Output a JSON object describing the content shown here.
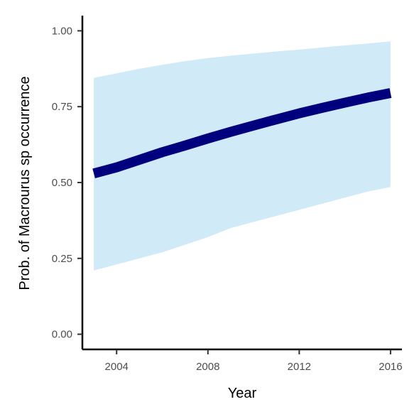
{
  "chart_data": {
    "type": "line",
    "xlabel": "Year",
    "ylabel": "Prob. of  Macrourus sp  occurrence",
    "xlim": [
      2002.5,
      2016.5
    ],
    "ylim": [
      -0.05,
      1.05
    ],
    "x_ticks": [
      2004,
      2008,
      2012,
      2016
    ],
    "x_tick_labels": [
      "2004",
      "2008",
      "2012",
      "2016"
    ],
    "y_ticks": [
      0,
      0.25,
      0.5,
      0.75,
      1.0
    ],
    "y_tick_labels": [
      "0.00",
      "0.25",
      "0.50",
      "0.75",
      "1.00"
    ],
    "grid": false,
    "legend": "none",
    "series": [
      {
        "x": [
          2003,
          2004,
          2005,
          2006,
          2007,
          2008,
          2009,
          2010,
          2011,
          2012,
          2013,
          2014,
          2015,
          2016
        ],
        "y": [
          0.53,
          0.55,
          0.575,
          0.6,
          0.622,
          0.645,
          0.667,
          0.688,
          0.708,
          0.728,
          0.746,
          0.763,
          0.78,
          0.795
        ],
        "lower": [
          0.21,
          0.23,
          0.25,
          0.27,
          0.295,
          0.32,
          0.35,
          0.37,
          0.39,
          0.41,
          0.43,
          0.45,
          0.47,
          0.485
        ],
        "upper": [
          0.845,
          0.86,
          0.875,
          0.888,
          0.9,
          0.91,
          0.918,
          0.925,
          0.932,
          0.938,
          0.945,
          0.952,
          0.958,
          0.965
        ],
        "line_color": "#00007f",
        "band_color": "#d1eaf7"
      }
    ]
  }
}
